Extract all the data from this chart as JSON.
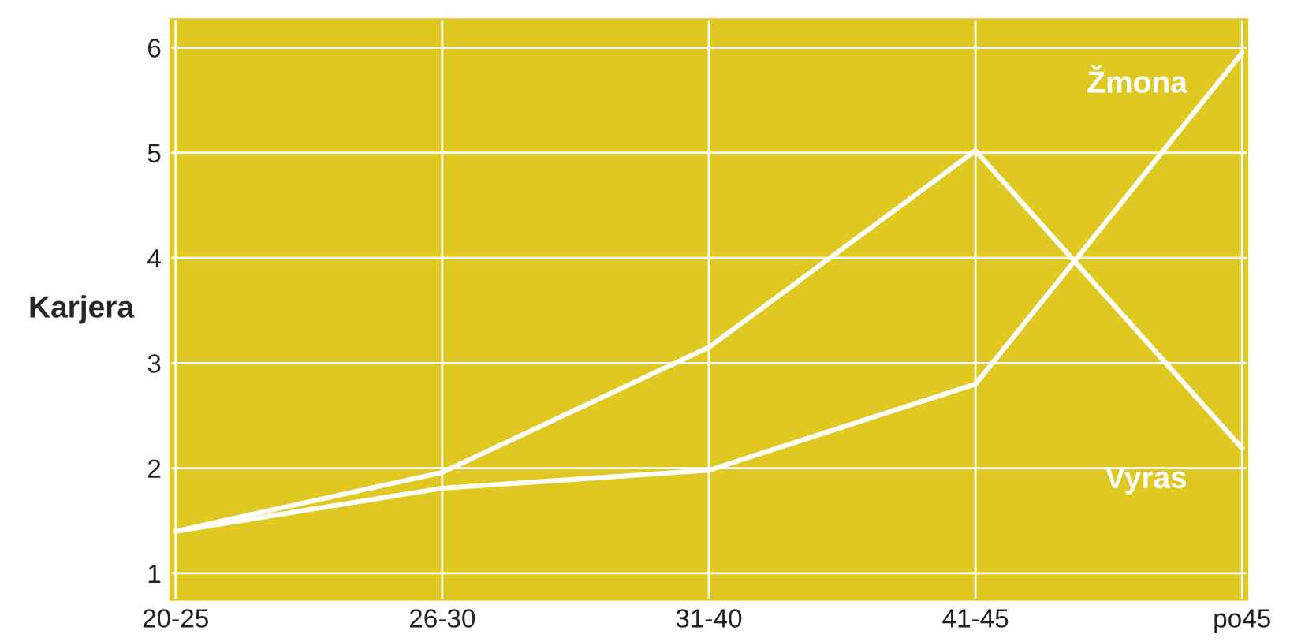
{
  "chart_data": {
    "type": "line",
    "ylabel": "Karjera",
    "categories": [
      "20-25",
      "26-30",
      "31-40",
      "41-45",
      "po45"
    ],
    "ylim": [
      0.75,
      6.27
    ],
    "yticks": [
      1,
      2,
      3,
      4,
      5,
      6
    ],
    "grid": true,
    "marker": "none",
    "line_style": "solid",
    "series": [
      {
        "name": "Vyras",
        "color": "#ffffff",
        "values": [
          1.4,
          1.96,
          3.15,
          5.02,
          2.19
        ]
      },
      {
        "name": "Žmona",
        "color": "#ffffff",
        "values": [
          1.4,
          1.81,
          1.98,
          2.8,
          5.95
        ]
      }
    ]
  }
}
